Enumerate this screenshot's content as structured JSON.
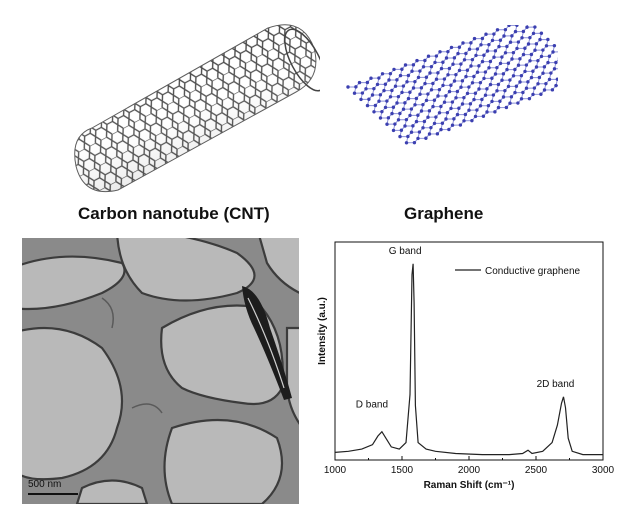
{
  "captions": {
    "cnt": "Carbon nanotube (CNT)",
    "graphene": "Graphene"
  },
  "tem": {
    "scale_label": "500 nm"
  },
  "chart_data": {
    "type": "line",
    "xlabel": "Raman Shift (cm⁻¹)",
    "ylabel": "Intensity (a.u.)",
    "xlim": [
      1000,
      3000
    ],
    "ylim": [
      0,
      1
    ],
    "xticks": [
      1000,
      1500,
      2000,
      2500,
      3000
    ],
    "legend": "top-right",
    "series": [
      {
        "name": "Conductive graphene",
        "x": [
          1000,
          1100,
          1200,
          1280,
          1320,
          1350,
          1380,
          1420,
          1480,
          1530,
          1560,
          1575,
          1583,
          1590,
          1600,
          1620,
          1680,
          1750,
          1900,
          2100,
          2300,
          2400,
          2440,
          2470,
          2550,
          2620,
          2660,
          2690,
          2705,
          2720,
          2740,
          2770,
          2850,
          3000
        ],
        "y": [
          0.035,
          0.04,
          0.05,
          0.07,
          0.11,
          0.13,
          0.1,
          0.06,
          0.05,
          0.08,
          0.3,
          0.85,
          0.9,
          0.72,
          0.25,
          0.08,
          0.05,
          0.04,
          0.03,
          0.025,
          0.025,
          0.03,
          0.045,
          0.03,
          0.04,
          0.08,
          0.16,
          0.26,
          0.29,
          0.24,
          0.1,
          0.04,
          0.025,
          0.025
        ]
      }
    ],
    "annotations": [
      {
        "text": "D band",
        "x": 1350
      },
      {
        "text": "G band",
        "x": 1583
      },
      {
        "text": "2D band",
        "x": 2705
      }
    ]
  }
}
